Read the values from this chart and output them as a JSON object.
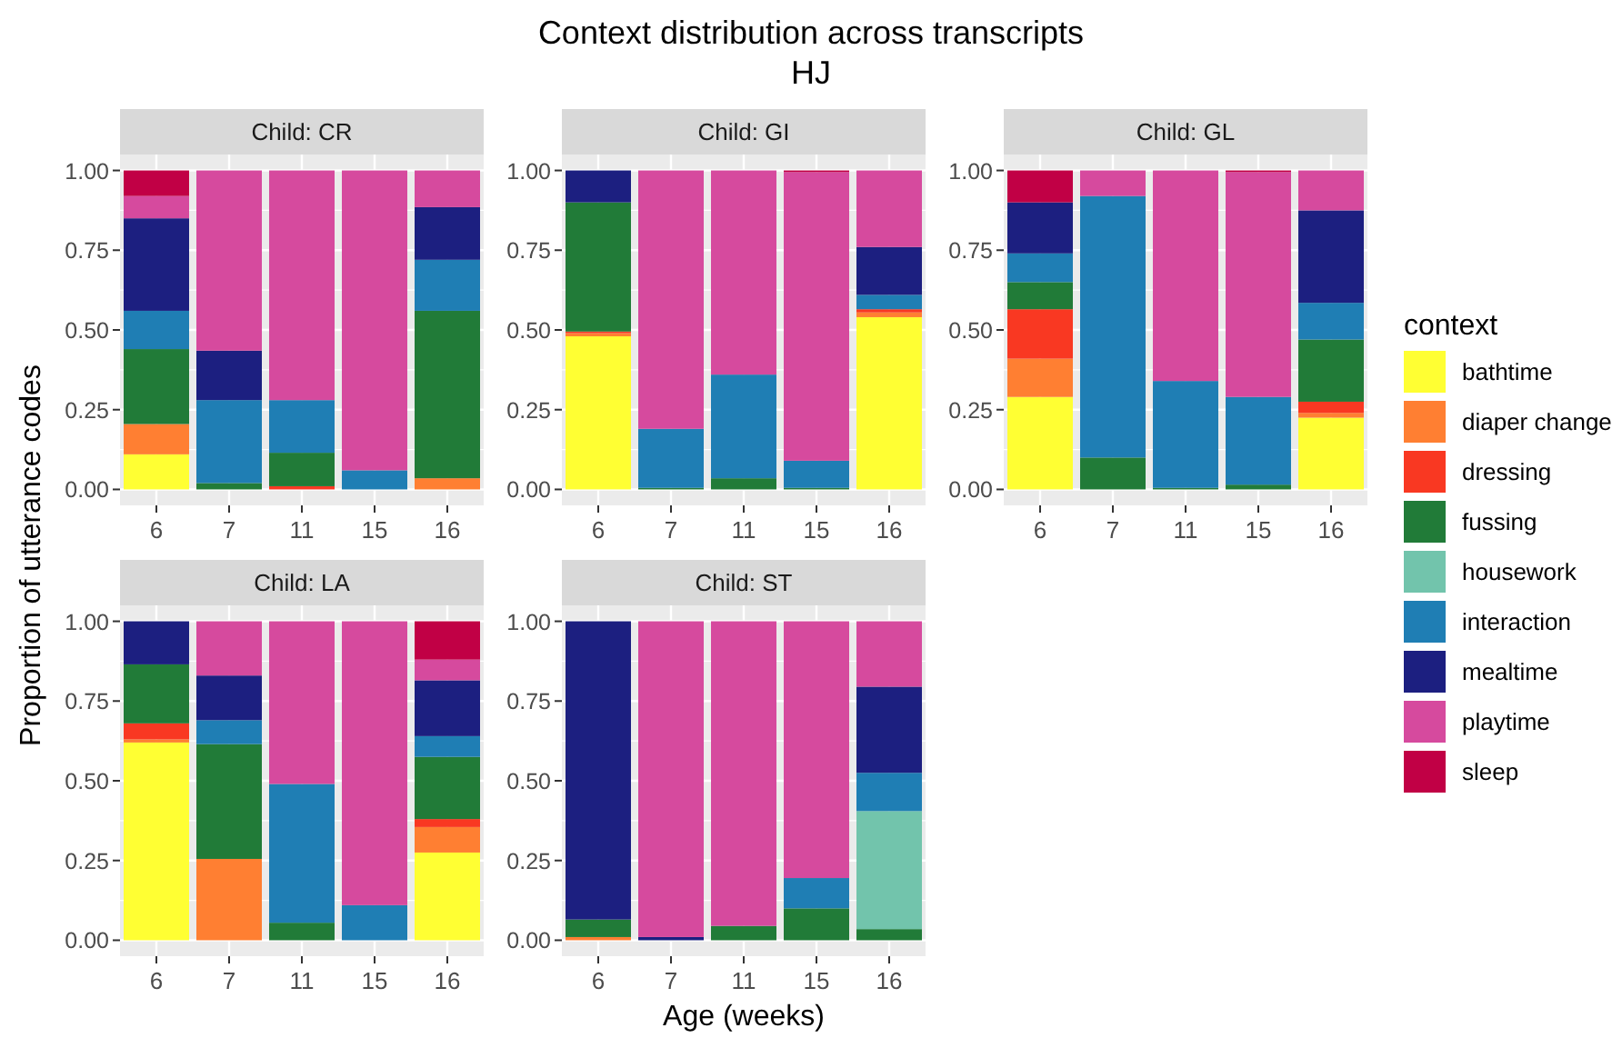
{
  "chart_data": [
    {
      "type": "other",
      "title": "Context distribution across transcripts",
      "subtitle": "HJ",
      "xlabel": "Age (weeks)",
      "ylabel": "Proportion of utterance codes"
    },
    {
      "type": "bar",
      "title": "Child: CR",
      "stacked": true,
      "grid": true,
      "legend": "right",
      "legend_title": "context",
      "categories": [
        "6",
        "7",
        "11",
        "15",
        "16"
      ],
      "ylim": [
        -0.05,
        1.05
      ],
      "yticks": [
        {
          "value": 0,
          "label": "0.00"
        },
        {
          "value": 0.25,
          "label": "0.25"
        },
        {
          "value": 0.5,
          "label": "0.50"
        },
        {
          "value": 0.75,
          "label": "0.75"
        },
        {
          "value": 1,
          "label": "1.00"
        }
      ],
      "series": [
        {
          "name": "bathtime",
          "color": "#ffff33",
          "values": [
            0.11,
            0,
            0,
            0,
            0
          ]
        },
        {
          "name": "diaper change",
          "color": "#ff7f32",
          "values": [
            0.095,
            0,
            0,
            0,
            0.035
          ]
        },
        {
          "name": "dressing",
          "color": "#f93822",
          "values": [
            0,
            0,
            0.01,
            0,
            0
          ]
        },
        {
          "name": "fussing",
          "color": "#217b38",
          "values": [
            0.235,
            0.02,
            0.105,
            0,
            0.525
          ]
        },
        {
          "name": "housework",
          "color": "#72c4ac",
          "values": [
            0,
            0,
            0,
            0,
            0
          ]
        },
        {
          "name": "interaction",
          "color": "#1f7eb4",
          "values": [
            0.12,
            0.26,
            0.165,
            0.06,
            0.16
          ]
        },
        {
          "name": "mealtime",
          "color": "#1c1f80",
          "values": [
            0.29,
            0.155,
            0,
            0,
            0.165
          ]
        },
        {
          "name": "playtime",
          "color": "#d64a9e",
          "values": [
            0.07,
            0.565,
            0.72,
            0.94,
            0.115
          ]
        },
        {
          "name": "sleep",
          "color": "#c10045",
          "values": [
            0.08,
            0,
            0,
            0,
            0
          ]
        }
      ]
    },
    {
      "type": "bar",
      "title": "Child: GI",
      "stacked": true,
      "grid": true,
      "categories": [
        "6",
        "7",
        "11",
        "15",
        "16"
      ],
      "ylim": [
        -0.05,
        1.05
      ],
      "yticks": [
        {
          "value": 0,
          "label": "0.00"
        },
        {
          "value": 0.25,
          "label": "0.25"
        },
        {
          "value": 0.5,
          "label": "0.50"
        },
        {
          "value": 0.75,
          "label": "0.75"
        },
        {
          "value": 1,
          "label": "1.00"
        }
      ],
      "series": [
        {
          "color": "#ffff33",
          "values": [
            0.48,
            0,
            0,
            0,
            0.54
          ]
        },
        {
          "color": "#ff7f32",
          "values": [
            0.01,
            0,
            0,
            0,
            0.015
          ]
        },
        {
          "color": "#f93822",
          "values": [
            0.005,
            0,
            0,
            0,
            0.01
          ]
        },
        {
          "color": "#217b38",
          "values": [
            0.405,
            0.005,
            0.035,
            0.005,
            0
          ]
        },
        {
          "color": "#1f7eb4",
          "values": [
            0,
            0.185,
            0.325,
            0.085,
            0.045
          ]
        },
        {
          "color": "#1c1f80",
          "values": [
            0.1,
            0,
            0,
            0,
            0.15
          ]
        },
        {
          "color": "#d64a9e",
          "values": [
            0,
            0.81,
            0.64,
            0.905,
            0.24
          ]
        },
        {
          "color": "#c10045",
          "values": [
            0,
            0,
            0,
            0.005,
            0
          ]
        }
      ]
    },
    {
      "type": "bar",
      "title": "Child: GL",
      "stacked": true,
      "grid": true,
      "categories": [
        "6",
        "7",
        "11",
        "15",
        "16"
      ],
      "ylim": [
        -0.05,
        1.05
      ],
      "yticks": [
        {
          "value": 0,
          "label": "0.00"
        },
        {
          "value": 0.25,
          "label": "0.25"
        },
        {
          "value": 0.5,
          "label": "0.50"
        },
        {
          "value": 0.75,
          "label": "0.75"
        },
        {
          "value": 1,
          "label": "1.00"
        }
      ],
      "series": [
        {
          "color": "#ffff33",
          "values": [
            0.29,
            0,
            0,
            0,
            0.225
          ]
        },
        {
          "color": "#ff7f32",
          "values": [
            0.12,
            0,
            0,
            0,
            0.015
          ]
        },
        {
          "color": "#f93822",
          "values": [
            0.155,
            0,
            0,
            0,
            0.035
          ]
        },
        {
          "color": "#217b38",
          "values": [
            0.085,
            0.1,
            0.005,
            0.015,
            0.195
          ]
        },
        {
          "color": "#1f7eb4",
          "values": [
            0.09,
            0.82,
            0.335,
            0.275,
            0.115
          ]
        },
        {
          "color": "#1c1f80",
          "values": [
            0.16,
            0,
            0,
            0,
            0.29
          ]
        },
        {
          "color": "#d64a9e",
          "values": [
            0,
            0.08,
            0.66,
            0.705,
            0.125
          ]
        },
        {
          "color": "#c10045",
          "values": [
            0.1,
            0,
            0,
            0.005,
            0
          ]
        }
      ]
    },
    {
      "type": "bar",
      "title": "Child: LA",
      "stacked": true,
      "grid": true,
      "categories": [
        "6",
        "7",
        "11",
        "15",
        "16"
      ],
      "ylim": [
        -0.05,
        1.05
      ],
      "yticks": [
        {
          "value": 0,
          "label": "0.00"
        },
        {
          "value": 0.25,
          "label": "0.25"
        },
        {
          "value": 0.5,
          "label": "0.50"
        },
        {
          "value": 0.75,
          "label": "0.75"
        },
        {
          "value": 1,
          "label": "1.00"
        }
      ],
      "series": [
        {
          "color": "#ffff33",
          "values": [
            0.62,
            0,
            0,
            0,
            0.275
          ]
        },
        {
          "color": "#ff7f32",
          "values": [
            0.01,
            0.255,
            0,
            0,
            0.08
          ]
        },
        {
          "color": "#f93822",
          "values": [
            0.05,
            0,
            0,
            0,
            0.025
          ]
        },
        {
          "color": "#217b38",
          "values": [
            0.185,
            0.36,
            0.055,
            0,
            0.195
          ]
        },
        {
          "color": "#1f7eb4",
          "values": [
            0,
            0.075,
            0.435,
            0.11,
            0.065
          ]
        },
        {
          "color": "#1c1f80",
          "values": [
            0.135,
            0.14,
            0,
            0,
            0.175
          ]
        },
        {
          "color": "#d64a9e",
          "values": [
            0,
            0.17,
            0.51,
            0.89,
            0.065
          ]
        },
        {
          "color": "#c10045",
          "values": [
            0,
            0,
            0,
            0,
            0.12
          ]
        }
      ]
    },
    {
      "type": "bar",
      "title": "Child: ST",
      "stacked": true,
      "grid": true,
      "categories": [
        "6",
        "7",
        "11",
        "15",
        "16"
      ],
      "ylim": [
        -0.05,
        1.05
      ],
      "yticks": [
        {
          "value": 0,
          "label": "0.00"
        },
        {
          "value": 0.25,
          "label": "0.25"
        },
        {
          "value": 0.5,
          "label": "0.50"
        },
        {
          "value": 0.75,
          "label": "0.75"
        },
        {
          "value": 1,
          "label": "1.00"
        }
      ],
      "series": [
        {
          "color": "#ff7f32",
          "values": [
            0.01,
            0,
            0,
            0,
            0
          ]
        },
        {
          "color": "#217b38",
          "values": [
            0.055,
            0,
            0.045,
            0.1,
            0.035
          ]
        },
        {
          "color": "#72c4ac",
          "values": [
            0,
            0,
            0,
            0,
            0.37
          ]
        },
        {
          "color": "#1f7eb4",
          "values": [
            0,
            0,
            0,
            0.095,
            0.12
          ]
        },
        {
          "color": "#1c1f80",
          "values": [
            0.935,
            0.01,
            0,
            0,
            0.27
          ]
        },
        {
          "color": "#d64a9e",
          "values": [
            0,
            0.99,
            0.955,
            0.805,
            0.205
          ]
        }
      ]
    }
  ]
}
